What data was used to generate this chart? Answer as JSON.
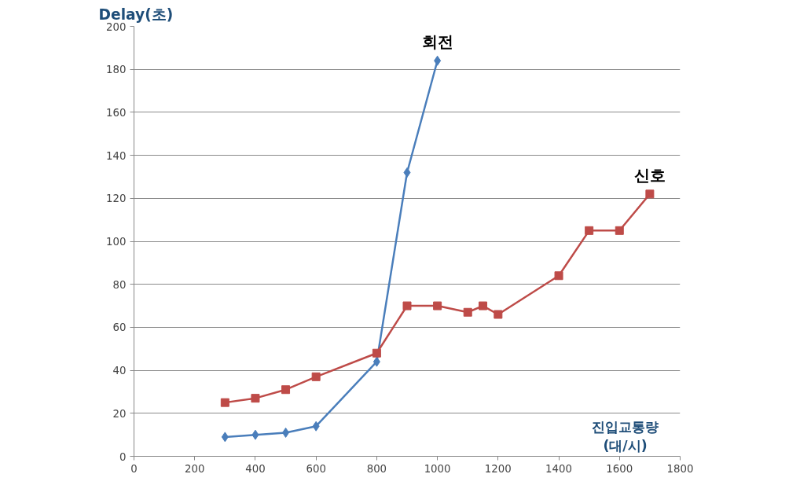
{
  "chart_data": {
    "type": "line",
    "ylabel": "Delay(초)",
    "xlabel": "진입교통량\n(대/시)",
    "xlim": [
      0,
      1800
    ],
    "xticks": [
      0,
      200,
      400,
      600,
      800,
      1000,
      1200,
      1400,
      1600,
      1800
    ],
    "ylim": [
      0,
      200
    ],
    "yticks": [
      0,
      20,
      40,
      60,
      80,
      100,
      120,
      140,
      160,
      180,
      200
    ],
    "grid": "y",
    "series": [
      {
        "name": "회전",
        "color": "#4a7ebb",
        "marker": "diamond",
        "x": [
          300,
          400,
          500,
          600,
          800,
          900,
          1000
        ],
        "values": [
          9,
          10,
          11,
          14,
          44,
          132,
          184
        ]
      },
      {
        "name": "신호",
        "color": "#be4b48",
        "marker": "square",
        "x": [
          300,
          400,
          500,
          600,
          800,
          900,
          1000,
          1100,
          1150,
          1200,
          1400,
          1500,
          1600,
          1700
        ],
        "values": [
          25,
          27,
          31,
          37,
          48,
          70,
          70,
          67,
          70,
          66,
          84,
          105,
          105,
          122
        ]
      }
    ]
  }
}
